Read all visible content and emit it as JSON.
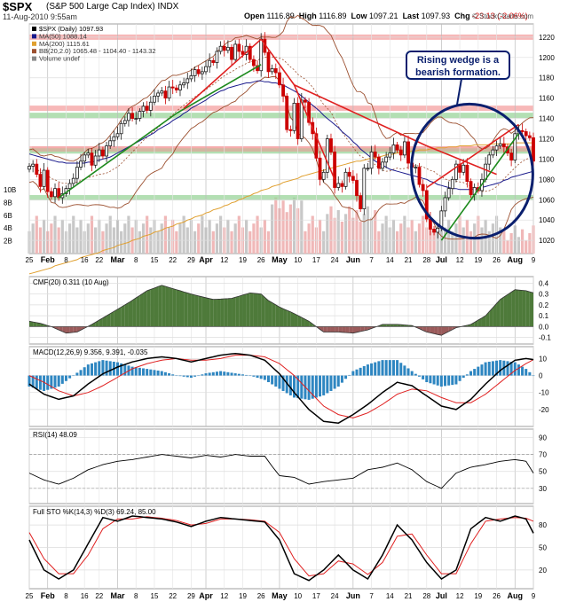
{
  "header": {
    "symbol": "$SPX",
    "name": "(S&P 500 Large Cap Index) INDX",
    "date": "11-Aug-2010 9:55am",
    "open_label": "Open",
    "open": "1116.89",
    "high_label": "High",
    "high": "1116.89",
    "low_label": "Low",
    "low": "1097.21",
    "last_label": "Last",
    "last": "1097.93",
    "chg_label": "Chg",
    "chg": "-23.13 (-2.06%)",
    "credit": "© StockCharts.com"
  },
  "annotation": {
    "line1": "Rising wedge is a",
    "line2": "bearish formation."
  },
  "colors": {
    "up": "#1a1a1a",
    "down": "#cc0000",
    "ma50": "#1a1a8c",
    "ma200": "#e0a030",
    "bb": "#9c5030",
    "green": "#1d8a1d",
    "red": "#e02020",
    "cmf": "#4e7a3a",
    "cmfneg": "#9a5a5a",
    "macdhist": "#2e86c1",
    "navy": "#0a1f6e"
  },
  "chart_data": [
    {
      "type": "candlestick",
      "title": "$SPX (Daily) 1097.93",
      "legend": [
        "$SPX (Daily) 1097.93",
        "MA(50) 1088.14",
        "MA(200) 1115.61",
        "BB(20,2.0) 1065.48 - 1104.40 - 1143.32",
        "Volume undef"
      ],
      "y_ticks": [
        1020,
        1040,
        1060,
        1080,
        1100,
        1120,
        1140,
        1160,
        1180,
        1200,
        1220
      ],
      "ylim": [
        1007,
        1233
      ],
      "volume_ticks": [
        "2B",
        "4B",
        "6B",
        "8B",
        "10B"
      ],
      "x_ticks": [
        "25",
        "Feb",
        "8",
        "16",
        "22",
        "Mar",
        "8",
        "15",
        "22",
        "29",
        "Apr",
        "12",
        "19",
        "26",
        "May",
        "10",
        "17",
        "24",
        "Jun",
        "7",
        "14",
        "21",
        "28",
        "Jul",
        "12",
        "19",
        "26",
        "Aug",
        "9"
      ],
      "x_tick_days": [
        0,
        5,
        10,
        15,
        19,
        24,
        29,
        34,
        39,
        44,
        48,
        53,
        58,
        63,
        68,
        73,
        78,
        83,
        88,
        93,
        98,
        103,
        108,
        112,
        117,
        122,
        127,
        132,
        137
      ],
      "close": [
        1093,
        1095,
        1085,
        1073,
        1089,
        1068,
        1063,
        1071,
        1062,
        1066,
        1071,
        1076,
        1081,
        1092,
        1098,
        1104,
        1106,
        1094,
        1103,
        1109,
        1103,
        1113,
        1118,
        1122,
        1125,
        1135,
        1138,
        1145,
        1140,
        1140,
        1147,
        1152,
        1148,
        1156,
        1162,
        1165,
        1167,
        1160,
        1171,
        1170,
        1168,
        1173,
        1175,
        1179,
        1182,
        1188,
        1184,
        1186,
        1191,
        1197,
        1195,
        1206,
        1211,
        1207,
        1210,
        1198,
        1213,
        1206,
        1203,
        1211,
        1198,
        1192,
        1187,
        1218,
        1205,
        1186,
        1189,
        1185,
        1173,
        1162,
        1129,
        1128,
        1155,
        1120,
        1158,
        1156,
        1136,
        1125,
        1101,
        1080,
        1087,
        1120,
        1107,
        1072,
        1076,
        1073,
        1087,
        1083,
        1079,
        1064,
        1051,
        1091,
        1091,
        1107,
        1102,
        1091,
        1097,
        1102,
        1106,
        1114,
        1109,
        1104,
        1117,
        1096,
        1092,
        1092,
        1075,
        1069,
        1041,
        1031,
        1028,
        1032,
        1049,
        1062,
        1071,
        1080,
        1095,
        1087,
        1094,
        1078,
        1065,
        1072,
        1069,
        1080,
        1095,
        1104,
        1109,
        1113,
        1115,
        1112,
        1106,
        1099,
        1125,
        1128,
        1127,
        1123,
        1121,
        1098
      ],
      "ma50": [
        1105,
        1104,
        1103,
        1102,
        1101,
        1100,
        1099,
        1098,
        1097,
        1097,
        1096,
        1096,
        1096,
        1096,
        1096,
        1096,
        1097,
        1097,
        1098,
        1099,
        1100,
        1101,
        1102,
        1104,
        1106,
        1108,
        1110,
        1112,
        1114,
        1116,
        1118,
        1120,
        1122,
        1124,
        1126,
        1129,
        1131,
        1133,
        1135,
        1138,
        1140,
        1142,
        1145,
        1147,
        1150,
        1152,
        1154,
        1156,
        1158,
        1161,
        1163,
        1165,
        1167,
        1168,
        1170,
        1171,
        1172,
        1173,
        1174,
        1175,
        1175,
        1176,
        1177,
        1177,
        1176,
        1176,
        1175,
        1175,
        1174,
        1173,
        1171,
        1169,
        1167,
        1165,
        1162,
        1159,
        1156,
        1153,
        1150,
        1147,
        1143,
        1140,
        1137,
        1134,
        1131,
        1127,
        1124,
        1121,
        1117,
        1114,
        1110,
        1107,
        1104,
        1101,
        1098,
        1096,
        1094,
        1092,
        1090,
        1089,
        1088,
        1087,
        1086,
        1085,
        1084,
        1083,
        1082,
        1081,
        1080,
        1078,
        1077,
        1075,
        1074,
        1073,
        1072,
        1071,
        1071,
        1070,
        1070,
        1070,
        1070,
        1071,
        1071,
        1072,
        1073,
        1074,
        1075,
        1076,
        1077,
        1079,
        1080,
        1082,
        1083,
        1084,
        1085,
        1086,
        1087,
        1088
      ],
      "ma200": [
        987,
        988,
        989,
        990,
        991,
        992,
        993,
        995,
        996,
        997,
        998,
        999,
        1000,
        1001,
        1003,
        1004,
        1005,
        1006,
        1007,
        1008,
        1010,
        1011,
        1012,
        1013,
        1015,
        1016,
        1017,
        1018,
        1020,
        1021,
        1022,
        1024,
        1025,
        1026,
        1028,
        1029,
        1030,
        1032,
        1033,
        1034,
        1036,
        1037,
        1038,
        1040,
        1041,
        1043,
        1044,
        1045,
        1047,
        1048,
        1050,
        1051,
        1052,
        1054,
        1055,
        1057,
        1058,
        1060,
        1061,
        1063,
        1064,
        1066,
        1067,
        1069,
        1070,
        1071,
        1073,
        1074,
        1075,
        1077,
        1078,
        1079,
        1080,
        1081,
        1083,
        1084,
        1085,
        1086,
        1087,
        1088,
        1089,
        1090,
        1091,
        1092,
        1093,
        1094,
        1095,
        1096,
        1097,
        1098,
        1098,
        1099,
        1100,
        1101,
        1101,
        1102,
        1103,
        1104,
        1104,
        1105,
        1106,
        1106,
        1107,
        1107,
        1108,
        1108,
        1109,
        1109,
        1109,
        1110,
        1110,
        1111,
        1111,
        1111,
        1112,
        1112,
        1112,
        1113,
        1113,
        1113,
        1113,
        1114,
        1114,
        1114,
        1114,
        1114,
        1115,
        1115,
        1115,
        1115,
        1115,
        1115,
        1116,
        1116,
        1116,
        1116,
        1116,
        1116
      ]
    },
    {
      "type": "area",
      "title": "CMF(20) 0.311 (10 Aug)",
      "y_ticks": [
        -0.1,
        0.0,
        0.1,
        0.2,
        0.3,
        0.4
      ],
      "ylim": [
        -0.16,
        0.46
      ],
      "x_days": [
        0,
        3,
        6,
        10,
        13,
        17,
        22,
        27,
        32,
        36,
        40,
        45,
        50,
        55,
        60,
        63,
        65,
        68,
        72,
        76,
        80,
        84,
        88,
        92,
        96,
        100,
        104,
        108,
        112,
        116,
        120,
        124,
        128,
        132,
        135,
        137
      ],
      "values": [
        0.05,
        0.03,
        0.0,
        -0.06,
        -0.05,
        0.02,
        0.12,
        0.22,
        0.33,
        0.38,
        0.34,
        0.29,
        0.25,
        0.26,
        0.31,
        0.3,
        0.24,
        0.18,
        0.12,
        0.05,
        -0.05,
        -0.05,
        -0.06,
        -0.03,
        0.02,
        0.02,
        0.01,
        -0.05,
        -0.08,
        -0.01,
        0.02,
        0.1,
        0.25,
        0.34,
        0.33,
        0.311
      ]
    },
    {
      "type": "line",
      "title": "MACD(12,26,9) 9.356, 9.391, -0.035",
      "y_ticks": [
        -20,
        -10,
        0,
        10
      ],
      "ylim": [
        -30,
        17
      ],
      "x_days": [
        0,
        4,
        8,
        12,
        16,
        20,
        24,
        28,
        32,
        36,
        40,
        44,
        48,
        52,
        56,
        60,
        64,
        68,
        72,
        76,
        80,
        84,
        88,
        92,
        96,
        100,
        104,
        108,
        112,
        116,
        120,
        124,
        128,
        132,
        135,
        137
      ],
      "macd": [
        -5,
        -11,
        -14,
        -12,
        -5,
        1,
        5,
        8,
        10,
        11,
        10,
        8,
        10,
        12,
        13,
        12,
        9,
        1,
        -10,
        -20,
        -27,
        -28,
        -23,
        -17,
        -10,
        -4,
        -6,
        -12,
        -18,
        -20,
        -14,
        -5,
        3,
        9,
        10,
        9.4
      ],
      "signal": [
        0,
        -4,
        -9,
        -12,
        -10,
        -6,
        -1,
        4,
        7,
        9,
        10,
        9,
        9,
        10,
        12,
        12,
        11,
        7,
        0,
        -9,
        -18,
        -23,
        -25,
        -22,
        -17,
        -11,
        -8,
        -9,
        -13,
        -16,
        -16,
        -11,
        -4,
        3,
        7,
        9.4
      ]
    },
    {
      "type": "line",
      "title": "RSI(14) 48.09",
      "y_ticks": [
        30,
        50,
        70,
        90
      ],
      "ylim": [
        12,
        100
      ],
      "x_days": [
        0,
        4,
        8,
        12,
        16,
        20,
        24,
        28,
        32,
        36,
        40,
        44,
        48,
        52,
        56,
        60,
        64,
        66,
        68,
        72,
        76,
        80,
        84,
        88,
        92,
        96,
        100,
        104,
        108,
        112,
        116,
        120,
        124,
        128,
        132,
        135,
        137
      ],
      "values": [
        48,
        40,
        35,
        42,
        52,
        58,
        62,
        64,
        67,
        70,
        68,
        66,
        69,
        67,
        70,
        68,
        68,
        56,
        45,
        43,
        35,
        38,
        40,
        42,
        52,
        55,
        60,
        52,
        38,
        30,
        48,
        55,
        58,
        62,
        64,
        62,
        48
      ]
    },
    {
      "type": "line",
      "title": "Full STO %K(14,3) %D(3) 69.24, 85.00",
      "y_ticks": [
        20,
        50,
        80
      ],
      "ylim": [
        -5,
        105
      ],
      "x_days": [
        0,
        4,
        8,
        12,
        16,
        20,
        24,
        28,
        32,
        36,
        40,
        44,
        48,
        52,
        56,
        60,
        64,
        68,
        72,
        76,
        80,
        84,
        88,
        92,
        96,
        100,
        104,
        108,
        112,
        116,
        120,
        124,
        128,
        132,
        135,
        137
      ],
      "k": [
        60,
        20,
        8,
        20,
        55,
        90,
        85,
        92,
        90,
        88,
        84,
        78,
        85,
        90,
        88,
        86,
        84,
        60,
        15,
        6,
        20,
        40,
        20,
        8,
        40,
        80,
        60,
        30,
        8,
        20,
        75,
        90,
        85,
        92,
        88,
        69
      ],
      "d": [
        70,
        35,
        15,
        15,
        40,
        75,
        88,
        88,
        91,
        89,
        86,
        80,
        82,
        88,
        88,
        87,
        85,
        70,
        35,
        12,
        15,
        32,
        28,
        14,
        30,
        65,
        68,
        40,
        15,
        15,
        55,
        85,
        88,
        90,
        89,
        85
      ]
    }
  ]
}
